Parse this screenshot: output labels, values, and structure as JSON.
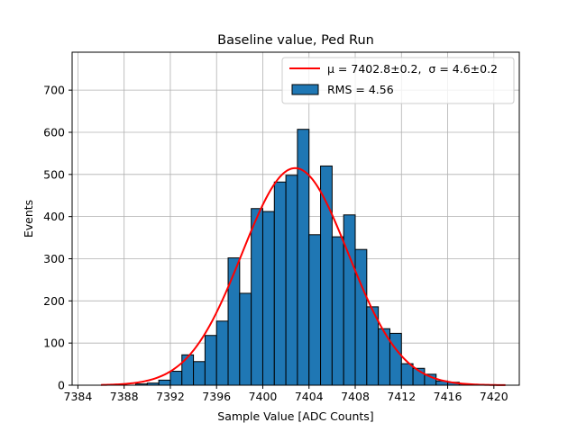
{
  "chart_data": {
    "type": "bar",
    "title": "Baseline value, Ped Run",
    "xlabel": "Sample Value [ADC Counts]",
    "ylabel": "Events",
    "xlim": [
      7383.5,
      7422.2
    ],
    "ylim": [
      0,
      790
    ],
    "grid": true,
    "legend_position": "top-right",
    "xticks": [
      7384,
      7388,
      7392,
      7396,
      7400,
      7404,
      7408,
      7412,
      7416,
      7420
    ],
    "yticks": [
      0,
      100,
      200,
      300,
      400,
      500,
      600,
      700
    ],
    "bin_width": 1,
    "histogram": {
      "name": "RMS = 4.56",
      "color": "#1f77b4",
      "edge_color": "#000000",
      "bins": [
        {
          "start": 7389,
          "value": 3
        },
        {
          "start": 7390,
          "value": 5
        },
        {
          "start": 7391,
          "value": 12
        },
        {
          "start": 7392,
          "value": 33
        },
        {
          "start": 7393,
          "value": 72
        },
        {
          "start": 7394,
          "value": 56
        },
        {
          "start": 7395,
          "value": 118
        },
        {
          "start": 7396,
          "value": 152
        },
        {
          "start": 7397,
          "value": 302
        },
        {
          "start": 7398,
          "value": 218
        },
        {
          "start": 7399,
          "value": 419
        },
        {
          "start": 7400,
          "value": 412
        },
        {
          "start": 7401,
          "value": 482
        },
        {
          "start": 7402,
          "value": 498
        },
        {
          "start": 7403,
          "value": 607
        },
        {
          "start": 7404,
          "value": 357
        },
        {
          "start": 7405,
          "value": 520
        },
        {
          "start": 7406,
          "value": 352
        },
        {
          "start": 7407,
          "value": 404
        },
        {
          "start": 7408,
          "value": 322
        },
        {
          "start": 7409,
          "value": 186
        },
        {
          "start": 7410,
          "value": 134
        },
        {
          "start": 7411,
          "value": 123
        },
        {
          "start": 7412,
          "value": 51
        },
        {
          "start": 7413,
          "value": 40
        },
        {
          "start": 7414,
          "value": 26
        },
        {
          "start": 7415,
          "value": 10
        },
        {
          "start": 7416,
          "value": 7
        },
        {
          "start": 7417,
          "value": 3
        }
      ]
    },
    "fit": {
      "type": "gaussian",
      "mu": 7402.8,
      "sigma": 4.6,
      "amplitude": 515,
      "x_range": [
        7386,
        7421
      ],
      "color": "#ff0000",
      "label_mu": "μ = 7402.8±0.2,",
      "label_sigma": "σ = 4.6±0.2"
    }
  }
}
